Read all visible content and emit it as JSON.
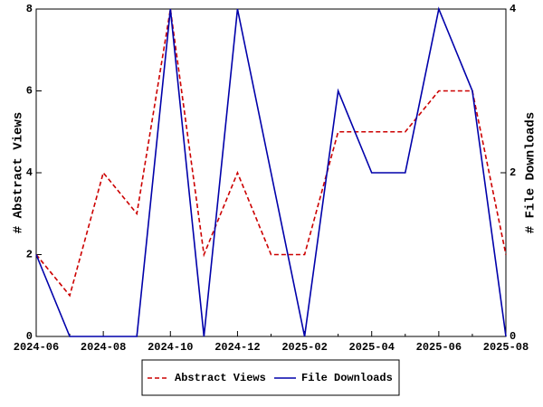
{
  "chart_data": {
    "type": "line",
    "categories": [
      "2024-06",
      null,
      "2024-08",
      null,
      "2024-10",
      null,
      "2024-12",
      null,
      "2025-02",
      null,
      "2025-04",
      null,
      "2025-06",
      null,
      "2025-08"
    ],
    "y_label": "# Abstract Views",
    "y2_label": "# File Downloads",
    "ylim": [
      0,
      8
    ],
    "yticks": [
      0,
      2,
      4,
      6,
      8
    ],
    "y2lim": [
      0,
      4
    ],
    "y2ticks": [
      0,
      2,
      4
    ],
    "legend": "bottom",
    "series": [
      {
        "name": "Abstract Views",
        "color": "#cc0000",
        "dash": true,
        "values": [
          2,
          1,
          4,
          3,
          8,
          2,
          4,
          2,
          2,
          5,
          5,
          5,
          6,
          6,
          2
        ]
      },
      {
        "name": "File Downloads",
        "color": "#0000aa",
        "dash": false,
        "axis": "y2",
        "values": [
          1,
          0,
          0,
          0,
          4,
          0,
          4,
          2,
          0,
          3,
          2,
          2,
          4,
          3,
          0
        ]
      }
    ]
  }
}
